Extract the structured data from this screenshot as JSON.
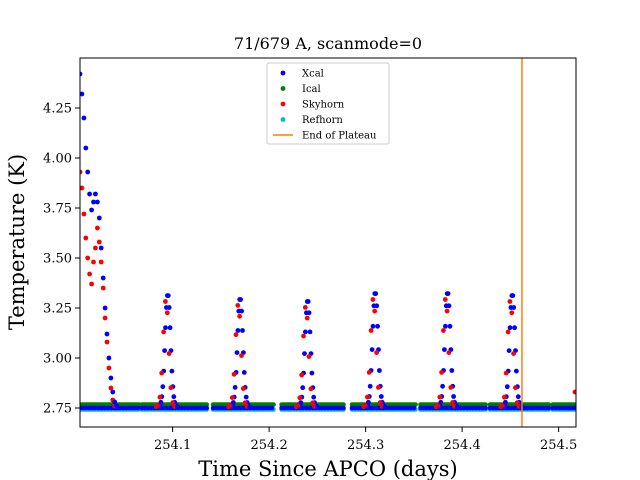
{
  "chart_data": {
    "type": "scatter",
    "title": "71/679 A, scanmode=0",
    "xlabel": "Time Since APCO (days)",
    "ylabel": "Temperature (K)",
    "xlim": [
      254.004,
      254.518
    ],
    "ylim": [
      2.655,
      4.5
    ],
    "xticks": [
      254.1,
      254.2,
      254.3,
      254.4,
      254.5
    ],
    "xtick_labels": [
      "254.1",
      "254.2",
      "254.3",
      "254.4",
      "254.5"
    ],
    "yticks": [
      2.75,
      3.0,
      3.25,
      3.5,
      3.75,
      4.0,
      4.25
    ],
    "ytick_labels": [
      "2.75",
      "3.00",
      "3.25",
      "3.50",
      "3.75",
      "4.00",
      "4.25"
    ],
    "legend_position": "top-center",
    "series": [
      {
        "name": "Xcal",
        "color": "#0000ff",
        "marker": "dot"
      },
      {
        "name": "Ical",
        "color": "#008000",
        "marker": "dot"
      },
      {
        "name": "Skyhorn",
        "color": "#ff0000",
        "marker": "dot"
      },
      {
        "name": "Refhorn",
        "color": "#00bfbf",
        "marker": "dot"
      },
      {
        "name": "End of Plateau",
        "color": "#ff7f0e",
        "marker": "line",
        "x": 254.462
      }
    ],
    "plateau_segments": [
      [
        254.004,
        254.066
      ],
      [
        254.068,
        254.136
      ],
      [
        254.142,
        254.205
      ],
      [
        254.213,
        254.278
      ],
      [
        254.286,
        254.353
      ],
      [
        254.357,
        254.425
      ],
      [
        254.429,
        254.49
      ],
      [
        254.494,
        254.518
      ]
    ],
    "plateau_level": 2.755,
    "initial_decay": {
      "xcal": [
        [
          254.004,
          4.42
        ],
        [
          254.006,
          4.32
        ],
        [
          254.008,
          4.2
        ],
        [
          254.01,
          4.05
        ],
        [
          254.012,
          3.93
        ],
        [
          254.014,
          3.82
        ],
        [
          254.016,
          3.74
        ],
        [
          254.018,
          3.78
        ],
        [
          254.02,
          3.82
        ],
        [
          254.022,
          3.78
        ],
        [
          254.024,
          3.7
        ],
        [
          254.026,
          3.55
        ],
        [
          254.028,
          3.4
        ],
        [
          254.03,
          3.25
        ],
        [
          254.032,
          3.12
        ],
        [
          254.034,
          3.0
        ],
        [
          254.036,
          2.9
        ],
        [
          254.038,
          2.83
        ],
        [
          254.04,
          2.78
        ],
        [
          254.042,
          2.76
        ]
      ],
      "skyhorn": [
        [
          254.004,
          3.93
        ],
        [
          254.006,
          3.85
        ],
        [
          254.008,
          3.72
        ],
        [
          254.01,
          3.6
        ],
        [
          254.012,
          3.5
        ],
        [
          254.014,
          3.42
        ],
        [
          254.016,
          3.37
        ],
        [
          254.018,
          3.48
        ],
        [
          254.02,
          3.55
        ],
        [
          254.022,
          3.65
        ],
        [
          254.024,
          3.58
        ],
        [
          254.026,
          3.48
        ],
        [
          254.028,
          3.35
        ],
        [
          254.03,
          3.2
        ],
        [
          254.032,
          3.08
        ],
        [
          254.034,
          2.95
        ],
        [
          254.036,
          2.85
        ],
        [
          254.038,
          2.79
        ],
        [
          254.04,
          2.76
        ]
      ]
    },
    "peaks": [
      {
        "x": 254.095,
        "ypeak": 3.32,
        "spread": 0.02
      },
      {
        "x": 254.17,
        "ypeak": 3.3,
        "spread": 0.02
      },
      {
        "x": 254.24,
        "ypeak": 3.29,
        "spread": 0.02
      },
      {
        "x": 254.31,
        "ypeak": 3.33,
        "spread": 0.02
      },
      {
        "x": 254.385,
        "ypeak": 3.33,
        "spread": 0.02
      },
      {
        "x": 254.452,
        "ypeak": 3.32,
        "spread": 0.02
      }
    ],
    "tail_point": {
      "x": 254.518,
      "y": 2.83
    }
  }
}
